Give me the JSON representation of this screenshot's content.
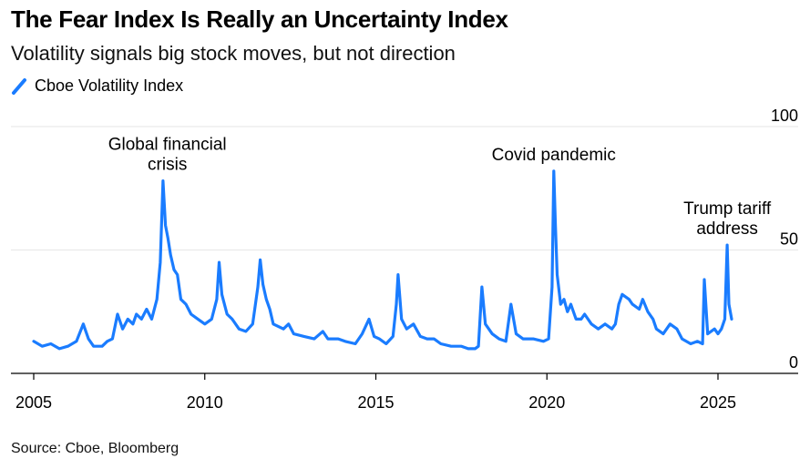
{
  "header": {
    "title": "The Fear Index Is Really an Uncertainty Index",
    "subtitle": "Volatility signals big stock moves, but not direction"
  },
  "footer": {
    "source": "Source: Cboe, Bloomberg"
  },
  "colors": {
    "series": "#1a7cff",
    "grid": "#e6e6e6",
    "axis": "#000000"
  },
  "chart_data": {
    "type": "line",
    "title": "The Fear Index Is Really an Uncertainty Index",
    "subtitle": "Volatility signals big stock moves, but not direction",
    "xlabel": "",
    "ylabel": "",
    "xlim": [
      2005,
      2027
    ],
    "ylim": [
      0,
      100
    ],
    "x_ticks": [
      2005,
      2010,
      2015,
      2020,
      2025
    ],
    "x_tick_labels": [
      "2005",
      "2010",
      "2015",
      "2020",
      "2025"
    ],
    "y_ticks": [
      0,
      50,
      100
    ],
    "y_tick_labels": [
      "0",
      "50",
      "100"
    ],
    "grid": true,
    "legend_position": "top-left",
    "series": [
      {
        "name": "Cboe Volatility Index",
        "x": [
          2005.0,
          2005.25,
          2005.5,
          2005.75,
          2006.0,
          2006.25,
          2006.45,
          2006.6,
          2006.75,
          2007.0,
          2007.15,
          2007.3,
          2007.45,
          2007.6,
          2007.75,
          2007.9,
          2008.0,
          2008.15,
          2008.3,
          2008.45,
          2008.6,
          2008.7,
          2008.78,
          2008.85,
          2008.92,
          2009.0,
          2009.1,
          2009.2,
          2009.3,
          2009.45,
          2009.6,
          2009.8,
          2010.0,
          2010.2,
          2010.35,
          2010.42,
          2010.5,
          2010.65,
          2010.8,
          2011.0,
          2011.2,
          2011.4,
          2011.55,
          2011.62,
          2011.7,
          2011.8,
          2011.9,
          2012.0,
          2012.3,
          2012.45,
          2012.6,
          2012.9,
          2013.2,
          2013.45,
          2013.6,
          2013.9,
          2014.1,
          2014.4,
          2014.6,
          2014.8,
          2014.95,
          2015.1,
          2015.3,
          2015.5,
          2015.6,
          2015.65,
          2015.75,
          2015.9,
          2016.1,
          2016.3,
          2016.5,
          2016.7,
          2016.9,
          2017.2,
          2017.5,
          2017.7,
          2017.9,
          2018.0,
          2018.1,
          2018.2,
          2018.4,
          2018.6,
          2018.8,
          2018.95,
          2019.1,
          2019.3,
          2019.6,
          2019.9,
          2020.05,
          2020.15,
          2020.2,
          2020.25,
          2020.3,
          2020.4,
          2020.5,
          2020.6,
          2020.7,
          2020.85,
          2021.0,
          2021.1,
          2021.3,
          2021.5,
          2021.7,
          2021.9,
          2022.0,
          2022.1,
          2022.2,
          2022.4,
          2022.5,
          2022.7,
          2022.8,
          2022.95,
          2023.1,
          2023.2,
          2023.4,
          2023.6,
          2023.8,
          2023.95,
          2024.2,
          2024.4,
          2024.55,
          2024.6,
          2024.7,
          2024.9,
          2025.0,
          2025.1,
          2025.2,
          2025.27,
          2025.32,
          2025.4
        ],
        "values": [
          13,
          11,
          12,
          10,
          11,
          13,
          20,
          14,
          11,
          11,
          13,
          14,
          24,
          18,
          22,
          20,
          24,
          22,
          26,
          22,
          30,
          45,
          78,
          60,
          55,
          48,
          42,
          40,
          30,
          28,
          24,
          22,
          20,
          22,
          30,
          45,
          32,
          24,
          22,
          18,
          17,
          20,
          35,
          46,
          36,
          30,
          26,
          20,
          18,
          20,
          16,
          15,
          14,
          17,
          14,
          14,
          13,
          12,
          16,
          22,
          15,
          14,
          12,
          15,
          28,
          40,
          22,
          18,
          20,
          15,
          14,
          14,
          12,
          11,
          11,
          10,
          10,
          11,
          35,
          20,
          16,
          14,
          13,
          28,
          16,
          14,
          14,
          13,
          14,
          35,
          82,
          60,
          40,
          28,
          30,
          25,
          28,
          22,
          22,
          24,
          20,
          18,
          20,
          18,
          20,
          28,
          32,
          30,
          28,
          26,
          30,
          25,
          22,
          18,
          16,
          20,
          18,
          14,
          12,
          13,
          12,
          38,
          16,
          18,
          16,
          18,
          22,
          52,
          28,
          22
        ]
      }
    ],
    "annotations": [
      {
        "text": [
          "Global financial",
          "crisis"
        ],
        "x": 2008.8,
        "y": 78
      },
      {
        "text": [
          "Covid pandemic"
        ],
        "x": 2020.2,
        "y": 82
      },
      {
        "text": [
          "Trump tariff",
          "address"
        ],
        "x": 2025.27,
        "y": 52
      }
    ]
  }
}
